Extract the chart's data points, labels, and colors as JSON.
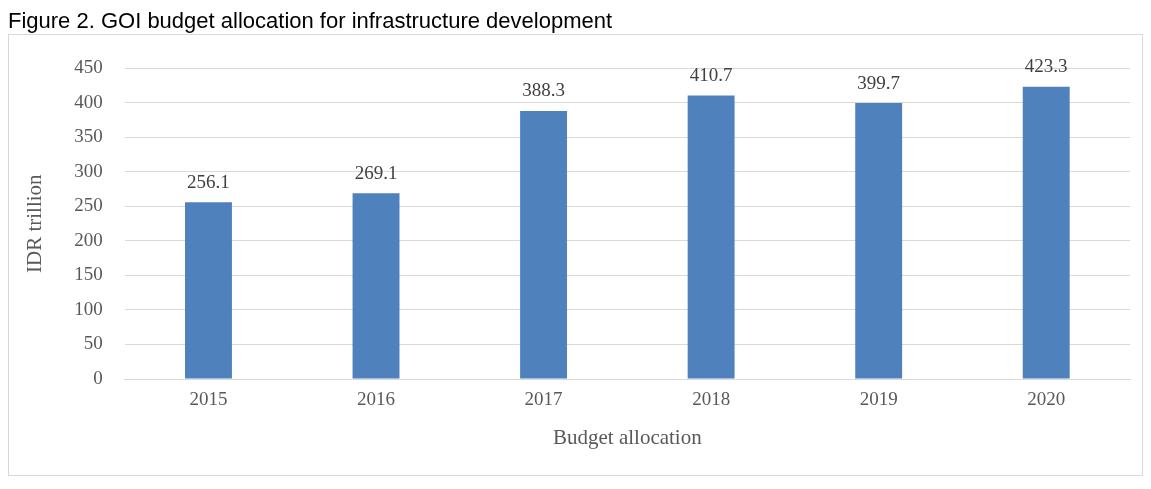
{
  "chart_data": {
    "type": "bar",
    "title": "Figure 2. GOI budget allocation for infrastructure development",
    "xlabel": "Budget allocation",
    "ylabel": "IDR trillion",
    "categories": [
      "2015",
      "2016",
      "2017",
      "2018",
      "2019",
      "2020"
    ],
    "values": [
      256.1,
      269.1,
      388.3,
      410.7,
      399.7,
      423.3
    ],
    "color": "#4f81bd",
    "ylim": [
      0,
      450
    ],
    "yticks": [
      0,
      50,
      100,
      150,
      200,
      250,
      300,
      350,
      400,
      450
    ],
    "grid": "y",
    "data_labels": true
  }
}
